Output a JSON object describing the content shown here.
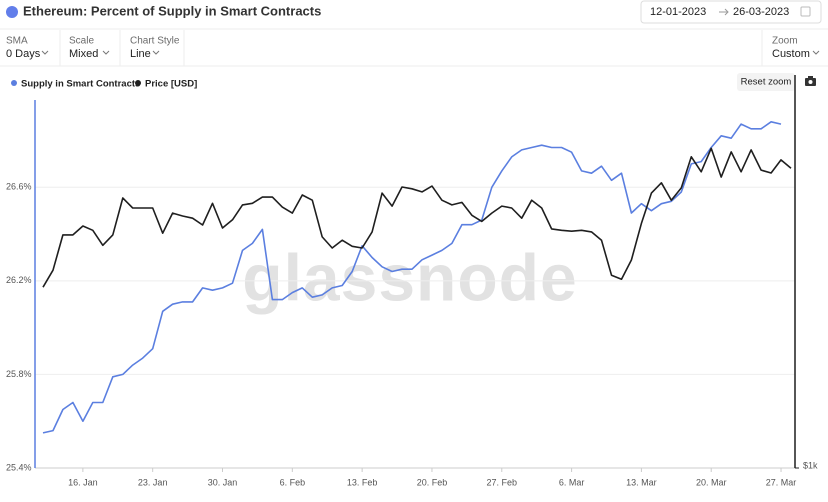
{
  "header": {
    "title": "Ethereum: Percent of Supply in Smart Contracts",
    "date_from": "12-01-2023",
    "date_to": "26-03-2023"
  },
  "controls": [
    {
      "label": "SMA",
      "value": "0 Days"
    },
    {
      "label": "Scale",
      "value": "Mixed"
    },
    {
      "label": "Chart Style",
      "value": "Line"
    },
    {
      "label": "Zoom",
      "value": "Custom"
    }
  ],
  "reset_zoom": "Reset zoom",
  "chart_data": {
    "type": "line",
    "watermark": "glassnode",
    "x": [
      12,
      13,
      14,
      15,
      16,
      17,
      18,
      19,
      20,
      21,
      22,
      23,
      24,
      25,
      26,
      27,
      28,
      29,
      30,
      31,
      32,
      33,
      34,
      35,
      36,
      37,
      38,
      39,
      40,
      41,
      42,
      43,
      44,
      45,
      46,
      47,
      48,
      49,
      50,
      51,
      52,
      53,
      54,
      55,
      56,
      57,
      58,
      59,
      60,
      61,
      62,
      63,
      64,
      65,
      66,
      67,
      68,
      69,
      70,
      71,
      72,
      73,
      74,
      75,
      76,
      77,
      78,
      79,
      80,
      81,
      82,
      83,
      84,
      85,
      86,
      87
    ],
    "xlim": [
      11.2,
      87.4
    ],
    "xticks": [
      {
        "value": 16,
        "label": "16. Jan"
      },
      {
        "value": 23,
        "label": "23. Jan"
      },
      {
        "value": 30,
        "label": "30. Jan"
      },
      {
        "value": 37,
        "label": "6. Feb"
      },
      {
        "value": 44,
        "label": "13. Feb"
      },
      {
        "value": 51,
        "label": "20. Feb"
      },
      {
        "value": 58,
        "label": "27. Feb"
      },
      {
        "value": 65,
        "label": "6. Mar"
      },
      {
        "value": 72,
        "label": "13. Mar"
      },
      {
        "value": 79,
        "label": "20. Mar"
      },
      {
        "value": 86,
        "label": "27. Mar"
      }
    ],
    "ylim": [
      25.4,
      27.08
    ],
    "yticks": [
      {
        "value": 25.4,
        "label": "25.4%"
      },
      {
        "value": 25.8,
        "label": "25.8%"
      },
      {
        "value": 26.2,
        "label": "26.2%"
      },
      {
        "value": 26.6,
        "label": "26.6%"
      }
    ],
    "y2lim": [
      1000,
      2130
    ],
    "y2log": true,
    "y2ticks": [
      {
        "value": 1000,
        "label": "$1k"
      }
    ],
    "grid": true,
    "series": [
      {
        "name": "Supply in Smart Contracts",
        "color": "#5b7fe0",
        "values": [
          25.55,
          25.56,
          25.65,
          25.68,
          25.6,
          25.68,
          25.68,
          25.79,
          25.8,
          25.84,
          25.87,
          25.91,
          26.07,
          26.1,
          26.11,
          26.11,
          26.17,
          26.16,
          26.17,
          26.19,
          26.33,
          26.36,
          26.42,
          26.12,
          26.12,
          26.15,
          26.17,
          26.13,
          26.14,
          26.17,
          26.18,
          26.24,
          26.35,
          26.3,
          26.26,
          26.24,
          26.25,
          26.25,
          26.29,
          26.31,
          26.33,
          26.36,
          26.44,
          26.44,
          26.46,
          26.6,
          26.67,
          26.73,
          26.76,
          26.77,
          26.78,
          26.77,
          26.77,
          26.75,
          26.67,
          26.66,
          26.69,
          26.63,
          26.66,
          26.49,
          26.53,
          26.5,
          26.53,
          26.54,
          26.58,
          26.7,
          26.71,
          26.77,
          26.82,
          26.81,
          26.87,
          26.85,
          26.85,
          26.88,
          26.87,
          null
        ]
      },
      {
        "name": "Price [USD]",
        "color": "#1f1f1f",
        "axis": "y2",
        "values": [
          1416,
          1463,
          1566,
          1566,
          1593,
          1580,
          1535,
          1566,
          1681,
          1649,
          1649,
          1649,
          1571,
          1633,
          1624,
          1617,
          1596,
          1664,
          1587,
          1612,
          1659,
          1664,
          1684,
          1684,
          1652,
          1633,
          1691,
          1674,
          1560,
          1527,
          1550,
          1532,
          1527,
          1575,
          1697,
          1655,
          1717,
          1711,
          1701,
          1720,
          1674,
          1659,
          1667,
          1626,
          1607,
          1633,
          1655,
          1649,
          1617,
          1674,
          1649,
          1584,
          1580,
          1577,
          1580,
          1575,
          1550,
          1449,
          1438,
          1492,
          1601,
          1697,
          1731,
          1674,
          1714,
          1820,
          1768,
          1850,
          1750,
          1837,
          1768,
          1844,
          1774,
          1764,
          1809,
          1780
        ]
      }
    ]
  }
}
